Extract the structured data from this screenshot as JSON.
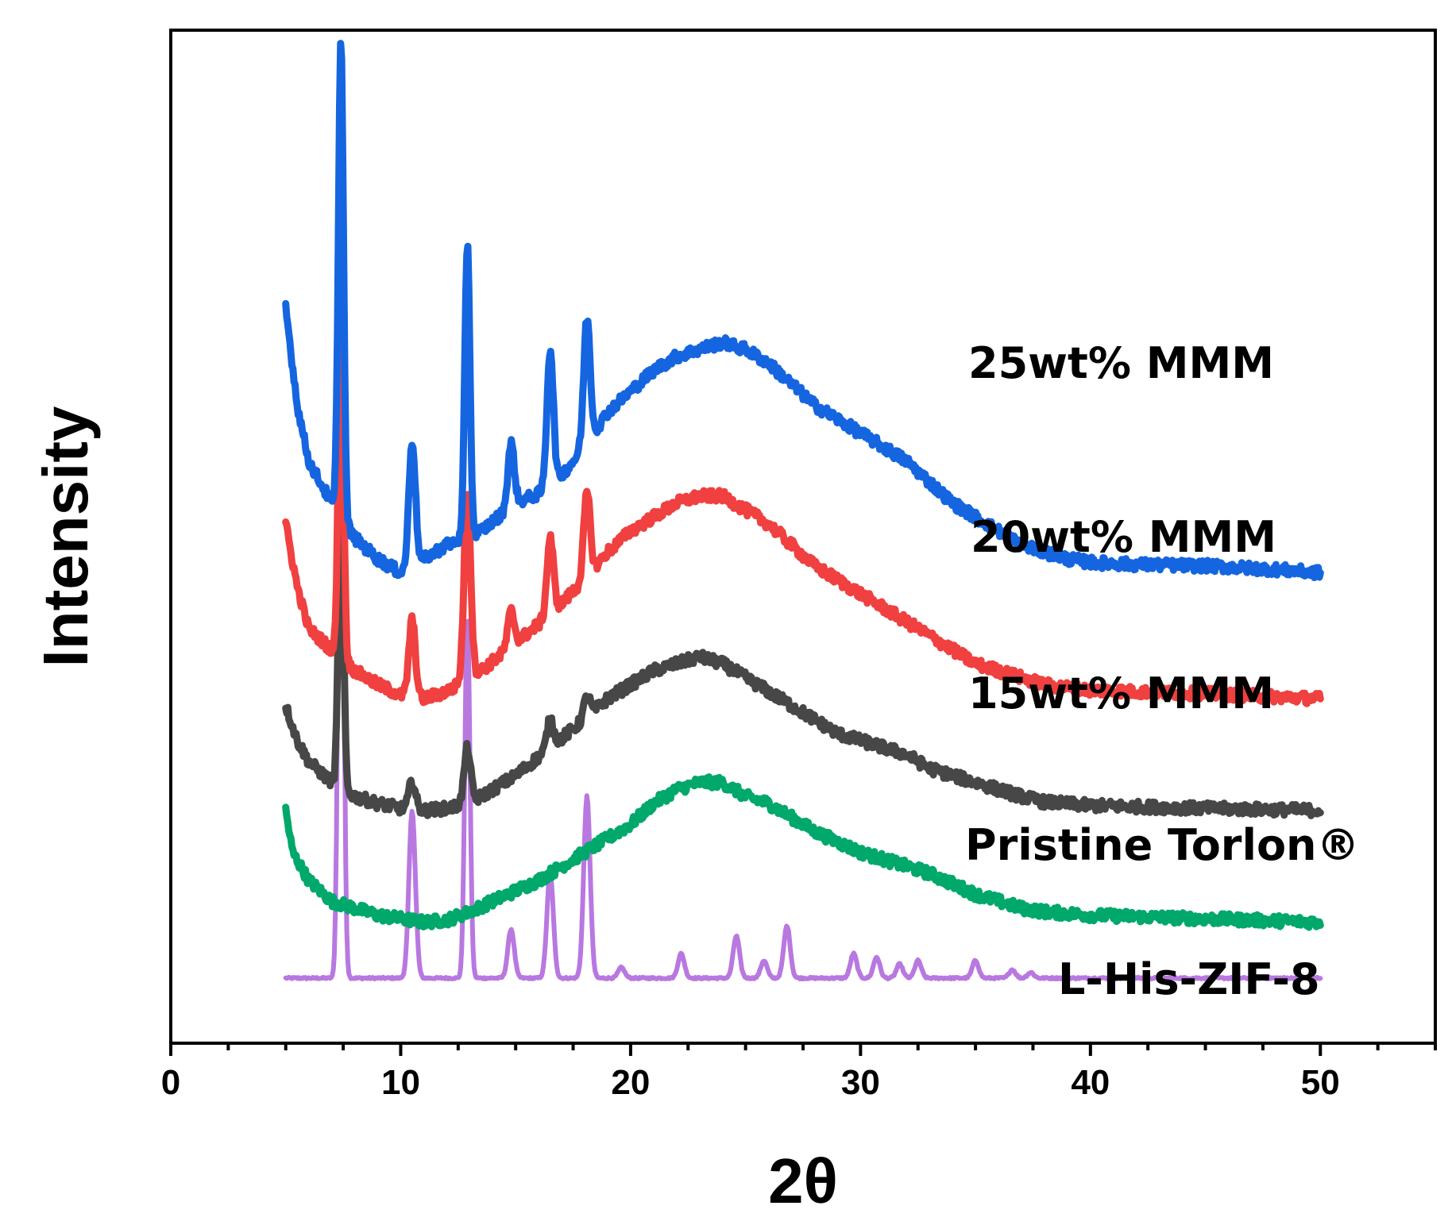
{
  "chart_data": {
    "type": "line",
    "title": "",
    "xlabel": "2θ",
    "ylabel": "Intensity",
    "xlim": [
      0,
      55
    ],
    "xticks": [
      0,
      10,
      20,
      30,
      40,
      50
    ],
    "yticks_shown": false,
    "series": [
      {
        "name": "25wt% MMM",
        "color": "#1565e0",
        "offset": 58,
        "end": 14,
        "peaks": [
          [
            7.4,
            68
          ],
          [
            10.5,
            18
          ],
          [
            12.9,
            42
          ],
          [
            14.8,
            9
          ],
          [
            16.5,
            20
          ],
          [
            18.1,
            18
          ]
        ],
        "points": [
          [
            5.0,
            38
          ],
          [
            5.5,
            24
          ],
          [
            6.0,
            16
          ],
          [
            7.0,
            10
          ],
          [
            8.0,
            5
          ],
          [
            9.0,
            2
          ],
          [
            10.0,
            0
          ],
          [
            11.0,
            2
          ],
          [
            12.0,
            4
          ],
          [
            13.5,
            6
          ],
          [
            15.0,
            10
          ],
          [
            16.5,
            12
          ],
          [
            18.0,
            18
          ],
          [
            19.0,
            23
          ],
          [
            20.0,
            26
          ],
          [
            21.0,
            29
          ],
          [
            22.0,
            31
          ],
          [
            23.0,
            32
          ],
          [
            24.0,
            33
          ],
          [
            25.0,
            32
          ],
          [
            26.0,
            30
          ],
          [
            27.0,
            27
          ],
          [
            28.0,
            24
          ],
          [
            29.0,
            22
          ],
          [
            30.0,
            20
          ],
          [
            31.0,
            18
          ],
          [
            32.0,
            16
          ],
          [
            33.0,
            13
          ],
          [
            34.0,
            10
          ],
          [
            35.0,
            8
          ],
          [
            36.0,
            6
          ],
          [
            37.0,
            4
          ],
          [
            38.0,
            3
          ],
          [
            39.0,
            2
          ],
          [
            40.0,
            1.5
          ],
          [
            42.0,
            1.2
          ],
          [
            45.0,
            1
          ],
          [
            48.0,
            0.5
          ],
          [
            50.0,
            0
          ]
        ]
      },
      {
        "name": "20wt% MMM",
        "color": "#f04040",
        "offset": 40,
        "end": 14,
        "peaks": [
          [
            7.4,
            50
          ],
          [
            10.5,
            11
          ],
          [
            12.9,
            27
          ],
          [
            14.8,
            5
          ],
          [
            16.5,
            11
          ],
          [
            18.1,
            12
          ]
        ],
        "points": [
          [
            5.0,
            25
          ],
          [
            5.5,
            16
          ],
          [
            6.0,
            10
          ],
          [
            7.0,
            7
          ],
          [
            8.0,
            4
          ],
          [
            9.0,
            2
          ],
          [
            10.0,
            0.5
          ],
          [
            11.0,
            0
          ],
          [
            12.0,
            1
          ],
          [
            13.5,
            4
          ],
          [
            15.0,
            8
          ],
          [
            16.5,
            12
          ],
          [
            18.0,
            17
          ],
          [
            19.0,
            21
          ],
          [
            20.0,
            24
          ],
          [
            21.0,
            26
          ],
          [
            22.0,
            28
          ],
          [
            23.0,
            29
          ],
          [
            24.0,
            29
          ],
          [
            25.0,
            27
          ],
          [
            26.0,
            25
          ],
          [
            27.0,
            22
          ],
          [
            28.0,
            19
          ],
          [
            29.0,
            17
          ],
          [
            30.0,
            15
          ],
          [
            31.0,
            13
          ],
          [
            32.0,
            11
          ],
          [
            33.0,
            9
          ],
          [
            34.0,
            7
          ],
          [
            35.0,
            5
          ],
          [
            36.0,
            4
          ],
          [
            37.0,
            3
          ],
          [
            38.0,
            2
          ],
          [
            40.0,
            1.2
          ],
          [
            45.0,
            0.7
          ],
          [
            50.0,
            0
          ]
        ]
      },
      {
        "name": "15wt% MMM",
        "color": "#474747",
        "offset": 24,
        "end": 14,
        "peaks": [
          [
            7.4,
            42
          ],
          [
            10.5,
            4
          ],
          [
            12.9,
            8
          ],
          [
            16.5,
            4
          ],
          [
            18.1,
            3
          ]
        ],
        "points": [
          [
            5.0,
            15
          ],
          [
            5.5,
            10
          ],
          [
            6.0,
            7
          ],
          [
            7.0,
            4
          ],
          [
            8.0,
            2
          ],
          [
            9.0,
            1
          ],
          [
            10.0,
            0.3
          ],
          [
            11.0,
            0
          ],
          [
            12.0,
            0.3
          ],
          [
            13.0,
            1
          ],
          [
            14.0,
            3
          ],
          [
            15.0,
            5
          ],
          [
            16.5,
            9
          ],
          [
            18.0,
            13
          ],
          [
            19.0,
            16
          ],
          [
            20.0,
            18
          ],
          [
            21.0,
            20
          ],
          [
            22.0,
            21
          ],
          [
            23.0,
            22
          ],
          [
            24.0,
            21
          ],
          [
            25.0,
            19
          ],
          [
            26.0,
            17
          ],
          [
            27.0,
            15
          ],
          [
            28.0,
            13
          ],
          [
            29.0,
            11
          ],
          [
            30.0,
            10
          ],
          [
            31.0,
            9
          ],
          [
            32.0,
            8
          ],
          [
            33.0,
            6
          ],
          [
            34.0,
            5
          ],
          [
            35.0,
            4
          ],
          [
            36.0,
            3
          ],
          [
            37.0,
            2
          ],
          [
            38.0,
            1.2
          ],
          [
            40.0,
            0.7
          ],
          [
            45.0,
            0.3
          ],
          [
            50.0,
            0
          ]
        ]
      },
      {
        "name": "Pristine Torlon®",
        "color": "#00a86b",
        "offset": 8,
        "end": 14,
        "peaks": [],
        "points": [
          [
            5.0,
            16
          ],
          [
            5.3,
            10
          ],
          [
            6.0,
            6
          ],
          [
            7.0,
            3
          ],
          [
            8.0,
            2
          ],
          [
            9.0,
            1
          ],
          [
            10.0,
            0.5
          ],
          [
            11.0,
            0
          ],
          [
            12.0,
            0.3
          ],
          [
            13.0,
            1.5
          ],
          [
            14.0,
            3
          ],
          [
            15.0,
            4.5
          ],
          [
            16.0,
            6
          ],
          [
            17.0,
            8
          ],
          [
            18.0,
            10
          ],
          [
            19.0,
            12
          ],
          [
            20.0,
            14
          ],
          [
            21.0,
            17
          ],
          [
            22.0,
            19
          ],
          [
            23.0,
            20
          ],
          [
            24.0,
            20
          ],
          [
            25.0,
            18
          ],
          [
            26.0,
            17
          ],
          [
            27.0,
            15
          ],
          [
            28.0,
            13
          ],
          [
            29.0,
            11.5
          ],
          [
            30.0,
            10
          ],
          [
            31.0,
            9
          ],
          [
            32.0,
            8
          ],
          [
            33.0,
            7
          ],
          [
            34.0,
            5.5
          ],
          [
            35.0,
            4
          ],
          [
            36.0,
            3
          ],
          [
            37.0,
            2
          ],
          [
            38.0,
            1.5
          ],
          [
            40.0,
            1
          ],
          [
            45.0,
            0.5
          ],
          [
            50.0,
            0
          ]
        ]
      },
      {
        "name": "L-His-ZIF-8",
        "color": "#b878e0",
        "offset": 0,
        "end": 14,
        "peaks": [
          [
            7.4,
            100
          ],
          [
            10.5,
            24
          ],
          [
            12.9,
            52
          ],
          [
            14.8,
            7
          ],
          [
            16.5,
            15
          ],
          [
            18.1,
            26
          ],
          [
            19.6,
            1.5
          ],
          [
            22.2,
            3.5
          ],
          [
            24.6,
            6
          ],
          [
            25.8,
            2.5
          ],
          [
            26.8,
            7.5
          ],
          [
            29.7,
            3.5
          ],
          [
            30.7,
            3
          ],
          [
            31.7,
            2
          ],
          [
            32.5,
            2.5
          ],
          [
            35.0,
            2.5
          ],
          [
            36.6,
            1.2
          ],
          [
            37.4,
            0.8
          ]
        ],
        "points": [
          [
            5.0,
            0
          ],
          [
            50.0,
            0
          ]
        ]
      }
    ]
  }
}
